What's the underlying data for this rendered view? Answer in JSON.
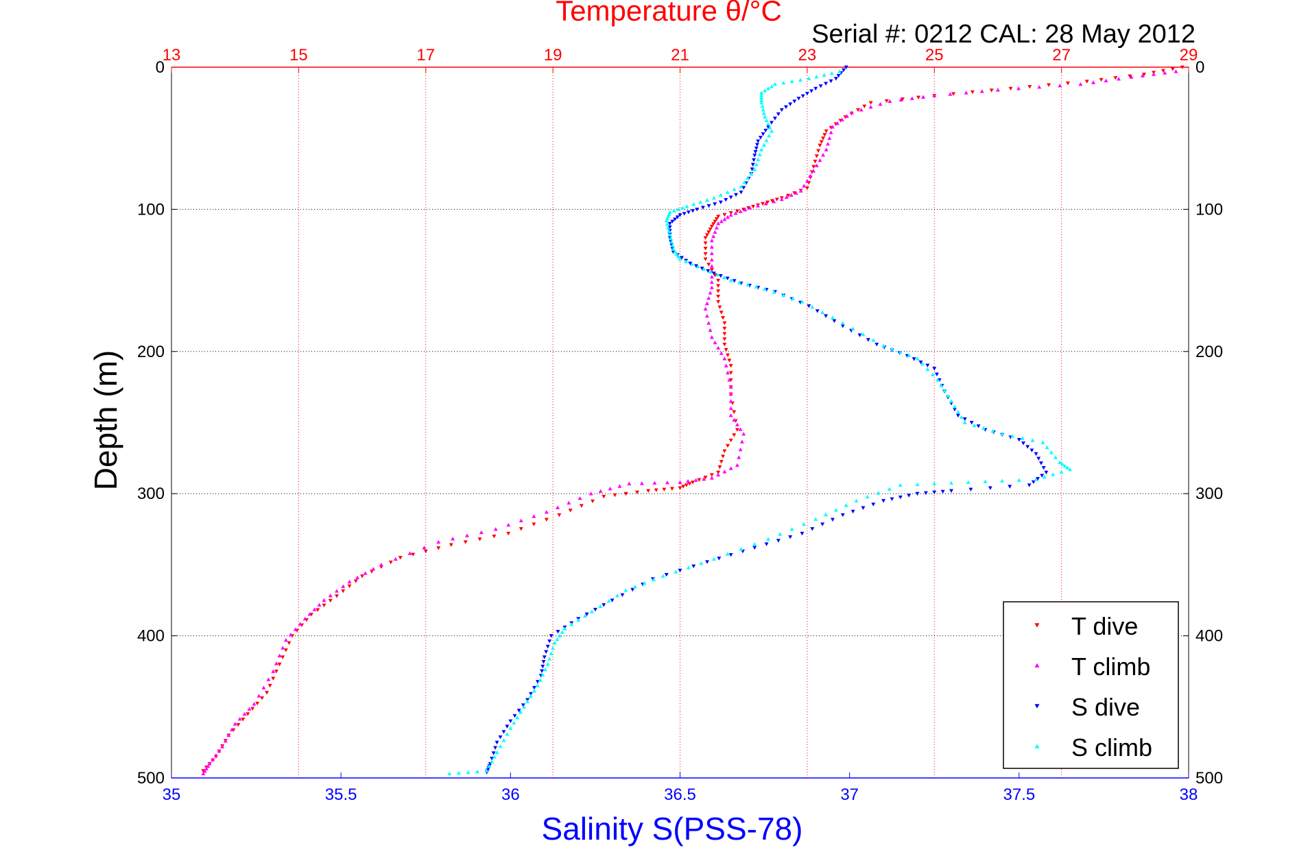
{
  "chart_data": {
    "type": "scatter",
    "title": "Temperature θ/°C",
    "subtitle": "Serial #: 0212  CAL: 28 May 2012",
    "ylabel": "Depth (m)",
    "xlabel_bottom": "Salinity S(PSS-78)",
    "ylim": [
      500,
      0
    ],
    "y_ticks": [
      "0",
      "100",
      "200",
      "300",
      "400",
      "500"
    ],
    "x_top": {
      "lim": [
        13,
        29
      ],
      "ticks": [
        "13",
        "15",
        "17",
        "19",
        "21",
        "23",
        "25",
        "27",
        "29"
      ]
    },
    "x_bottom": {
      "lim": [
        35,
        38
      ],
      "ticks": [
        "35",
        "35.5",
        "36",
        "36.5",
        "37",
        "37.5",
        "38"
      ]
    },
    "grid": true,
    "legend_position": "bottom-right",
    "series": [
      {
        "name": "T dive",
        "axis": "top",
        "color": "#ff0000",
        "marker": "triangle-down",
        "points": [
          [
            28.9,
            0
          ],
          [
            28.3,
            5
          ],
          [
            27.4,
            10
          ],
          [
            26.2,
            15
          ],
          [
            25.0,
            20
          ],
          [
            24.0,
            25
          ],
          [
            23.6,
            35
          ],
          [
            23.3,
            45
          ],
          [
            23.2,
            55
          ],
          [
            23.1,
            70
          ],
          [
            23.0,
            85
          ],
          [
            22.6,
            92
          ],
          [
            22.3,
            96
          ],
          [
            22.0,
            100
          ],
          [
            21.6,
            105
          ],
          [
            21.5,
            112
          ],
          [
            21.4,
            120
          ],
          [
            21.4,
            135
          ],
          [
            21.6,
            150
          ],
          [
            21.6,
            165
          ],
          [
            21.7,
            180
          ],
          [
            21.7,
            195
          ],
          [
            21.8,
            210
          ],
          [
            21.8,
            230
          ],
          [
            21.9,
            255
          ],
          [
            21.7,
            270
          ],
          [
            21.6,
            285
          ],
          [
            21.2,
            292
          ],
          [
            21.0,
            296
          ],
          [
            20.5,
            298
          ],
          [
            19.8,
            302
          ],
          [
            19.1,
            315
          ],
          [
            18.3,
            328
          ],
          [
            17.4,
            336
          ],
          [
            16.6,
            345
          ],
          [
            16.0,
            358
          ],
          [
            15.6,
            372
          ],
          [
            15.2,
            385
          ],
          [
            14.9,
            400
          ],
          [
            14.7,
            420
          ],
          [
            14.5,
            440
          ],
          [
            14.2,
            455
          ],
          [
            13.9,
            470
          ],
          [
            13.7,
            485
          ],
          [
            13.5,
            495
          ]
        ]
      },
      {
        "name": "T climb",
        "axis": "top",
        "color": "#ff00ff",
        "marker": "triangle-up",
        "points": [
          [
            28.8,
            3
          ],
          [
            28.1,
            7
          ],
          [
            27.3,
            12
          ],
          [
            26.0,
            16
          ],
          [
            25.0,
            20
          ],
          [
            24.3,
            24
          ],
          [
            23.7,
            32
          ],
          [
            23.4,
            42
          ],
          [
            23.3,
            58
          ],
          [
            23.1,
            73
          ],
          [
            22.9,
            87
          ],
          [
            22.6,
            93
          ],
          [
            22.1,
            99
          ],
          [
            21.8,
            104
          ],
          [
            21.6,
            110
          ],
          [
            21.5,
            122
          ],
          [
            21.5,
            140
          ],
          [
            21.5,
            155
          ],
          [
            21.4,
            170
          ],
          [
            21.5,
            190
          ],
          [
            21.7,
            205
          ],
          [
            21.8,
            225
          ],
          [
            21.8,
            245
          ],
          [
            22.0,
            258
          ],
          [
            21.9,
            280
          ],
          [
            21.5,
            289
          ],
          [
            21.0,
            292
          ],
          [
            20.2,
            293
          ],
          [
            19.6,
            300
          ],
          [
            18.9,
            313
          ],
          [
            18.1,
            325
          ],
          [
            17.2,
            334
          ],
          [
            16.3,
            350
          ],
          [
            15.8,
            362
          ],
          [
            15.4,
            375
          ],
          [
            15.1,
            388
          ],
          [
            14.8,
            403
          ],
          [
            14.6,
            425
          ],
          [
            14.3,
            448
          ],
          [
            14.0,
            462
          ],
          [
            13.8,
            478
          ],
          [
            13.6,
            490
          ],
          [
            13.5,
            497
          ]
        ]
      },
      {
        "name": "S dive",
        "axis": "bottom",
        "color": "#0000ff",
        "marker": "triangle-down",
        "points": [
          [
            36.99,
            0
          ],
          [
            36.96,
            8
          ],
          [
            36.9,
            15
          ],
          [
            36.85,
            22
          ],
          [
            36.8,
            30
          ],
          [
            36.76,
            42
          ],
          [
            36.73,
            52
          ],
          [
            36.72,
            62
          ],
          [
            36.71,
            75
          ],
          [
            36.68,
            88
          ],
          [
            36.62,
            95
          ],
          [
            36.55,
            100
          ],
          [
            36.5,
            104
          ],
          [
            36.47,
            110
          ],
          [
            36.47,
            120
          ],
          [
            36.48,
            130
          ],
          [
            36.53,
            138
          ],
          [
            36.6,
            145
          ],
          [
            36.68,
            152
          ],
          [
            36.78,
            158
          ],
          [
            36.88,
            168
          ],
          [
            36.98,
            182
          ],
          [
            37.08,
            195
          ],
          [
            37.17,
            203
          ],
          [
            37.25,
            212
          ],
          [
            37.28,
            228
          ],
          [
            37.32,
            245
          ],
          [
            37.4,
            255
          ],
          [
            37.5,
            262
          ],
          [
            37.55,
            272
          ],
          [
            37.58,
            285
          ],
          [
            37.53,
            294
          ],
          [
            37.3,
            298
          ],
          [
            37.2,
            300
          ],
          [
            37.1,
            305
          ],
          [
            36.98,
            315
          ],
          [
            36.86,
            328
          ],
          [
            36.72,
            338
          ],
          [
            36.58,
            348
          ],
          [
            36.42,
            360
          ],
          [
            36.3,
            375
          ],
          [
            36.2,
            388
          ],
          [
            36.12,
            400
          ],
          [
            36.1,
            415
          ],
          [
            36.09,
            428
          ],
          [
            36.05,
            445
          ],
          [
            36.0,
            460
          ],
          [
            35.96,
            475
          ],
          [
            35.94,
            490
          ],
          [
            35.93,
            496
          ]
        ]
      },
      {
        "name": "S climb",
        "axis": "bottom",
        "color": "#00ffff",
        "marker": "triangle-up",
        "points": [
          [
            36.97,
            3
          ],
          [
            36.88,
            8
          ],
          [
            36.78,
            12
          ],
          [
            36.74,
            18
          ],
          [
            36.74,
            25
          ],
          [
            36.75,
            35
          ],
          [
            36.77,
            45
          ],
          [
            36.74,
            58
          ],
          [
            36.72,
            72
          ],
          [
            36.68,
            84
          ],
          [
            36.6,
            92
          ],
          [
            36.52,
            98
          ],
          [
            36.47,
            102
          ],
          [
            36.46,
            108
          ],
          [
            36.47,
            118
          ],
          [
            36.48,
            128
          ],
          [
            36.5,
            135
          ],
          [
            36.57,
            142
          ],
          [
            36.65,
            150
          ],
          [
            36.75,
            156
          ],
          [
            36.86,
            165
          ],
          [
            36.98,
            180
          ],
          [
            37.1,
            196
          ],
          [
            37.2,
            205
          ],
          [
            37.26,
            220
          ],
          [
            37.3,
            235
          ],
          [
            37.34,
            250
          ],
          [
            37.45,
            258
          ],
          [
            37.57,
            264
          ],
          [
            37.62,
            278
          ],
          [
            37.65,
            283
          ],
          [
            37.55,
            290
          ],
          [
            37.35,
            292
          ],
          [
            37.15,
            294
          ],
          [
            37.02,
            305
          ],
          [
            36.9,
            318
          ],
          [
            36.76,
            332
          ],
          [
            36.6,
            346
          ],
          [
            36.45,
            358
          ],
          [
            36.34,
            368
          ],
          [
            36.24,
            383
          ],
          [
            36.16,
            395
          ],
          [
            36.13,
            405
          ],
          [
            36.11,
            420
          ],
          [
            36.08,
            435
          ],
          [
            36.04,
            450
          ],
          [
            36.0,
            465
          ],
          [
            35.96,
            482
          ],
          [
            35.93,
            495
          ],
          [
            35.82,
            497
          ]
        ]
      }
    ]
  }
}
